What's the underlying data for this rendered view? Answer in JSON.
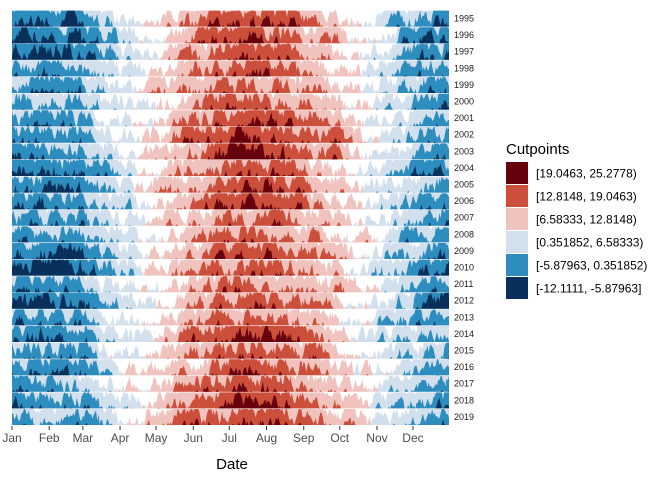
{
  "chart_data": {
    "type": "horizon",
    "xlabel": "Date",
    "x_ticks": [
      "Jan",
      "Feb",
      "Mar",
      "Apr",
      "May",
      "Jun",
      "Jul",
      "Aug",
      "Sep",
      "Oct",
      "Nov",
      "Dec"
    ],
    "years": [
      "1995",
      "1996",
      "1997",
      "1998",
      "1999",
      "2000",
      "2001",
      "2002",
      "2003",
      "2004",
      "2005",
      "2006",
      "2007",
      "2008",
      "2009",
      "2010",
      "2011",
      "2012",
      "2013",
      "2014",
      "2015",
      "2016",
      "2017",
      "2018",
      "2019"
    ],
    "year_summer_peak": [
      21,
      20,
      20,
      17,
      18,
      17,
      20,
      21,
      22,
      18,
      20,
      19,
      18,
      16,
      19,
      19,
      18,
      19,
      17,
      21,
      18,
      19,
      19,
      22,
      20
    ],
    "year_winter_low": [
      -8,
      -9,
      -9,
      -5,
      -5,
      -5,
      -5,
      -5,
      -6,
      -7,
      -6,
      -7,
      -4,
      -4,
      -8,
      -11,
      -5,
      -10,
      -5,
      -7,
      -4,
      -6,
      -4,
      -6,
      -4
    ],
    "y_unit_range": [
      -12.1111,
      25.2778
    ],
    "legend": {
      "title": "Cutpoints",
      "position": "right",
      "items": [
        {
          "label": "[19.0463, 25.2778)",
          "color": "#67000d"
        },
        {
          "label": "[12.8148, 19.0463)",
          "color": "#cb4f3b"
        },
        {
          "label": "[6.58333, 12.8148)",
          "color": "#f0c3bf"
        },
        {
          "label": "[0.351852, 6.58333)",
          "color": "#d2e0ed"
        },
        {
          "label": "[-5.87963, 0.351852)",
          "color": "#2d8dbe"
        },
        {
          "label": "[-12.1111, -5.87963]",
          "color": "#08305b"
        }
      ]
    },
    "band_colors": {
      "pos1": "#f0c3bf",
      "pos2": "#cb4f3b",
      "pos3": "#67000d",
      "neg0": "#d2e0ed",
      "neg1": "#2d8dbe",
      "neg2": "#08305b"
    },
    "grid": false
  }
}
